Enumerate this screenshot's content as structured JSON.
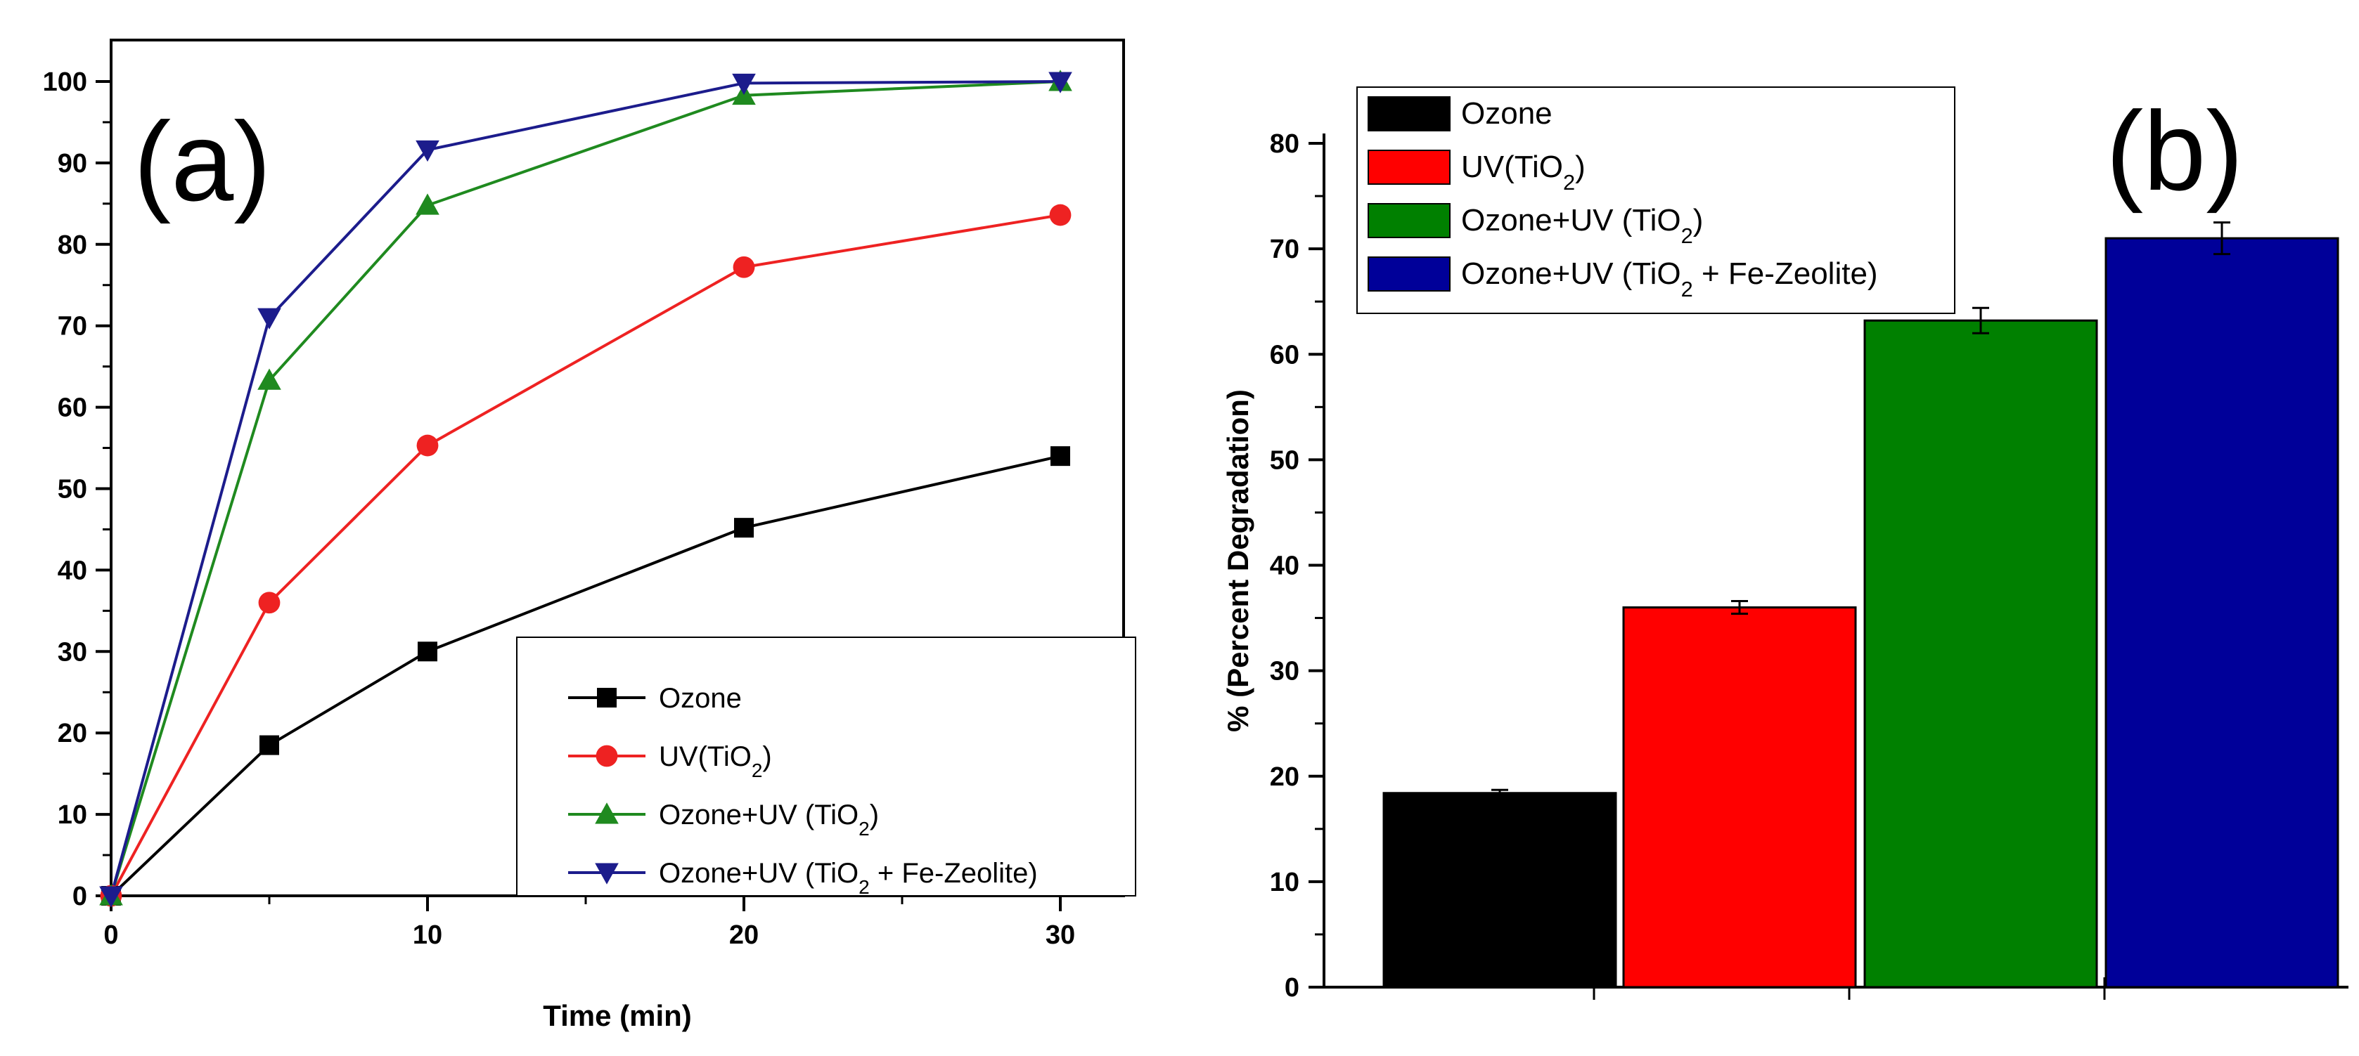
{
  "chart_data": [
    {
      "type": "line",
      "panel_label": "(a)",
      "xlabel": "Time (min)",
      "ylabel": "",
      "xlim": [
        0,
        32
      ],
      "ylim": [
        0,
        100
      ],
      "x": [
        0,
        5,
        10,
        20,
        30
      ],
      "x_ticks": [
        "0",
        "10",
        "20",
        "30"
      ],
      "y_ticks": [
        "0",
        "10",
        "20",
        "30",
        "40",
        "50",
        "60",
        "70",
        "80",
        "90",
        "100"
      ],
      "legend_position": "bottom-right",
      "series": [
        {
          "name": "Ozone",
          "name_main": "Ozone",
          "name_sub": "",
          "name_tail": "",
          "color": "#000000",
          "marker": "square",
          "values": [
            0,
            18.5,
            30,
            45.2,
            54
          ]
        },
        {
          "name": "UV(TiO2)",
          "name_main": "UV(TiO",
          "name_sub": "2",
          "name_tail": ")",
          "color": "#ee2222",
          "marker": "circle",
          "values": [
            0,
            36,
            55.3,
            77.2,
            83.6
          ]
        },
        {
          "name": "Ozone+UV (TiO2)",
          "name_main": "Ozone+UV (TiO",
          "name_sub": "2",
          "name_tail": ")",
          "color": "#1f8a1f",
          "marker": "triangle-up",
          "values": [
            0,
            63.3,
            84.8,
            98.3,
            100
          ]
        },
        {
          "name": "Ozone+UV (TiO2 + Fe-Zeolite)",
          "name_main": "Ozone+UV (TiO",
          "name_sub": "2",
          "name_tail": " + Fe-Zeolite)",
          "color": "#1c1c8c",
          "marker": "triangle-down",
          "values": [
            0,
            71,
            91.6,
            99.8,
            100
          ]
        }
      ]
    },
    {
      "type": "bar",
      "panel_label": "(b)",
      "xlabel": "",
      "ylabel": "% (Percent Degradation)",
      "ylim": [
        0,
        80
      ],
      "y_ticks": [
        "0",
        "10",
        "20",
        "30",
        "40",
        "50",
        "60",
        "70",
        "80"
      ],
      "legend_position": "top-left",
      "bars": [
        {
          "name": "Ozone",
          "name_main": "Ozone",
          "name_sub": "",
          "name_tail": "",
          "color": "#000000",
          "value": 18.4,
          "error": 0.3
        },
        {
          "name": "UV(TiO2)",
          "name_main": "UV(TiO",
          "name_sub": "2",
          "name_tail": ")",
          "color": "#ff0000",
          "value": 36,
          "error": 0.6
        },
        {
          "name": "Ozone+UV (TiO2)",
          "name_main": "Ozone+UV (TiO",
          "name_sub": "2",
          "name_tail": ")",
          "color": "#008000",
          "value": 63.2,
          "error": 1.2
        },
        {
          "name": "Ozone+UV (TiO2 + Fe-Zeolite)",
          "name_main": "Ozone+UV (TiO",
          "name_sub": "2",
          "name_tail": " + Fe-Zeolite)",
          "color": "#000099",
          "value": 71,
          "error": 1.5
        }
      ]
    }
  ]
}
